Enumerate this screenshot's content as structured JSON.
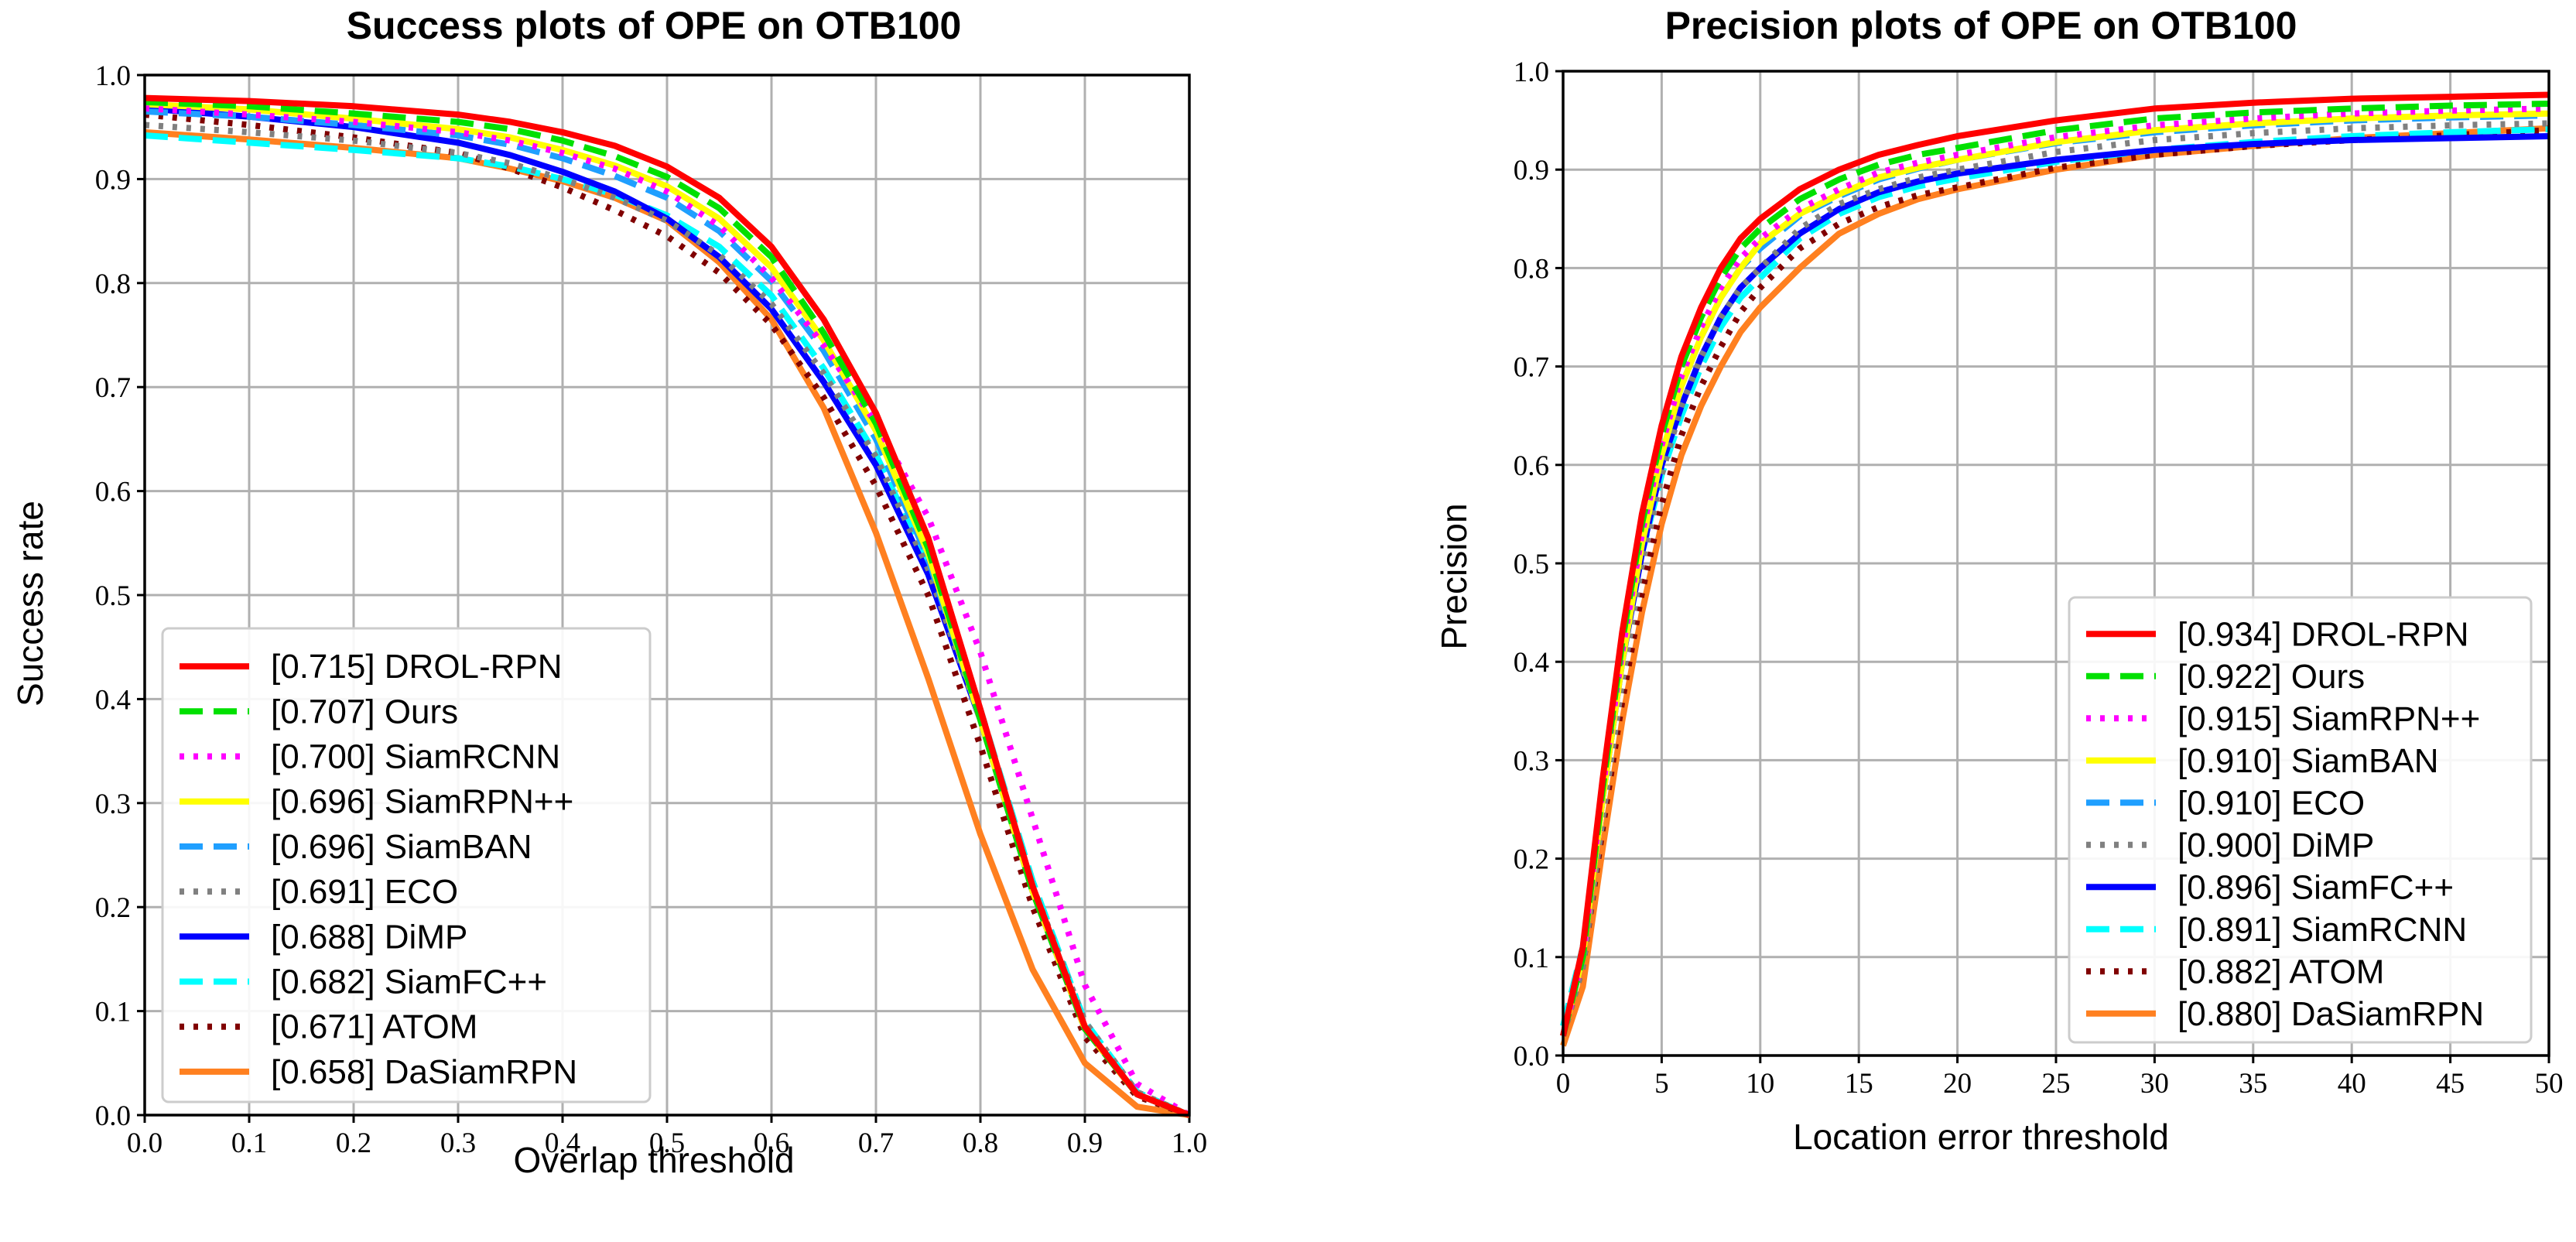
{
  "chart_data": [
    {
      "type": "line",
      "title": "Success plots of OPE on OTB100",
      "xlabel": "Overlap threshold",
      "ylabel": "Success rate",
      "xlim": [
        0.0,
        1.0
      ],
      "ylim": [
        0.0,
        1.0
      ],
      "x_ticks": [
        "0.0",
        "0.1",
        "0.2",
        "0.3",
        "0.4",
        "0.5",
        "0.6",
        "0.7",
        "0.8",
        "0.9",
        "1.0"
      ],
      "y_ticks": [
        "0.0",
        "0.1",
        "0.2",
        "0.3",
        "0.4",
        "0.5",
        "0.6",
        "0.7",
        "0.8",
        "0.9",
        "1.0"
      ],
      "grid": true,
      "legend_position": "lower-left",
      "x": [
        0,
        0.1,
        0.2,
        0.3,
        0.35,
        0.4,
        0.45,
        0.5,
        0.55,
        0.6,
        0.65,
        0.7,
        0.75,
        0.8,
        0.85,
        0.9,
        0.95,
        1.0
      ],
      "series": [
        {
          "name": "[0.715] DROL-RPN",
          "color": "#ff0000",
          "dash": "solid",
          "values": [
            0.978,
            0.975,
            0.97,
            0.962,
            0.955,
            0.945,
            0.932,
            0.912,
            0.882,
            0.835,
            0.765,
            0.675,
            0.555,
            0.39,
            0.22,
            0.085,
            0.02,
            0.0
          ]
        },
        {
          "name": "[0.707] Ours",
          "color": "#00e000",
          "dash": "dashed",
          "values": [
            0.974,
            0.97,
            0.963,
            0.955,
            0.948,
            0.937,
            0.922,
            0.902,
            0.872,
            0.825,
            0.752,
            0.665,
            0.545,
            0.38,
            0.215,
            0.083,
            0.02,
            0.0
          ]
        },
        {
          "name": "[0.700] SiamRCNN",
          "color": "#ff00ff",
          "dash": "dotted",
          "values": [
            0.968,
            0.962,
            0.955,
            0.945,
            0.937,
            0.925,
            0.91,
            0.888,
            0.855,
            0.805,
            0.74,
            0.665,
            0.575,
            0.445,
            0.285,
            0.125,
            0.03,
            0.0
          ]
        },
        {
          "name": "[0.696] SiamRPN++",
          "color": "#ffff00",
          "dash": "solid",
          "values": [
            0.972,
            0.967,
            0.958,
            0.948,
            0.94,
            0.928,
            0.913,
            0.893,
            0.862,
            0.815,
            0.745,
            0.658,
            0.54,
            0.38,
            0.215,
            0.083,
            0.02,
            0.0
          ]
        },
        {
          "name": "[0.696] SiamBAN",
          "color": "#1f9fff",
          "dash": "dashed",
          "values": [
            0.965,
            0.96,
            0.952,
            0.942,
            0.933,
            0.92,
            0.903,
            0.882,
            0.85,
            0.802,
            0.735,
            0.65,
            0.535,
            0.38,
            0.215,
            0.083,
            0.02,
            0.0
          ]
        },
        {
          "name": "[0.691] ECO",
          "color": "#808080",
          "dash": "dotted",
          "values": [
            0.952,
            0.945,
            0.937,
            0.925,
            0.915,
            0.9,
            0.882,
            0.86,
            0.827,
            0.78,
            0.713,
            0.633,
            0.525,
            0.38,
            0.22,
            0.09,
            0.022,
            0.0
          ]
        },
        {
          "name": "[0.688] DiMP",
          "color": "#0000ff",
          "dash": "solid",
          "values": [
            0.968,
            0.96,
            0.95,
            0.935,
            0.923,
            0.907,
            0.888,
            0.862,
            0.825,
            0.775,
            0.705,
            0.625,
            0.52,
            0.38,
            0.215,
            0.083,
            0.02,
            0.0
          ]
        },
        {
          "name": "[0.682] SiamFC++",
          "color": "#00ffff",
          "dash": "dashed",
          "values": [
            0.942,
            0.935,
            0.928,
            0.92,
            0.912,
            0.9,
            0.885,
            0.865,
            0.835,
            0.788,
            0.718,
            0.635,
            0.53,
            0.39,
            0.225,
            0.09,
            0.022,
            0.0
          ]
        },
        {
          "name": "[0.671] ATOM",
          "color": "#800000",
          "dash": "dotted",
          "values": [
            0.962,
            0.952,
            0.94,
            0.925,
            0.91,
            0.892,
            0.87,
            0.845,
            0.81,
            0.76,
            0.69,
            0.605,
            0.5,
            0.355,
            0.2,
            0.075,
            0.018,
            0.0
          ]
        },
        {
          "name": "[0.658] DaSiamRPN",
          "color": "#ff8020",
          "dash": "solid",
          "values": [
            0.945,
            0.938,
            0.93,
            0.92,
            0.91,
            0.898,
            0.882,
            0.86,
            0.82,
            0.765,
            0.68,
            0.56,
            0.42,
            0.27,
            0.14,
            0.05,
            0.008,
            0.0
          ]
        }
      ]
    },
    {
      "type": "line",
      "title": "Precision plots of OPE on OTB100",
      "xlabel": "Location error threshold",
      "ylabel": "Precision",
      "xlim": [
        0,
        50
      ],
      "ylim": [
        0.0,
        1.0
      ],
      "x_ticks": [
        "0",
        "5",
        "10",
        "15",
        "20",
        "25",
        "30",
        "35",
        "40",
        "45",
        "50"
      ],
      "y_ticks": [
        "0.0",
        "0.1",
        "0.2",
        "0.3",
        "0.4",
        "0.5",
        "0.6",
        "0.7",
        "0.8",
        "0.9",
        "1.0"
      ],
      "grid": true,
      "legend_position": "lower-right",
      "x": [
        0,
        1,
        2,
        3,
        4,
        5,
        6,
        7,
        8,
        9,
        10,
        12,
        14,
        16,
        18,
        20,
        25,
        30,
        35,
        40,
        45,
        50
      ],
      "series": [
        {
          "name": "[0.934] DROL-RPN",
          "color": "#ff0000",
          "dash": "solid",
          "values": [
            0.02,
            0.11,
            0.28,
            0.43,
            0.55,
            0.64,
            0.71,
            0.76,
            0.8,
            0.83,
            0.85,
            0.88,
            0.9,
            0.915,
            0.925,
            0.934,
            0.95,
            0.962,
            0.968,
            0.972,
            0.974,
            0.976
          ]
        },
        {
          "name": "[0.922] Ours",
          "color": "#00e000",
          "dash": "dashed",
          "values": [
            0.02,
            0.1,
            0.27,
            0.42,
            0.54,
            0.63,
            0.7,
            0.75,
            0.79,
            0.82,
            0.84,
            0.87,
            0.89,
            0.905,
            0.915,
            0.922,
            0.94,
            0.952,
            0.958,
            0.962,
            0.965,
            0.967
          ]
        },
        {
          "name": "[0.915] SiamRPN++",
          "color": "#ff00ff",
          "dash": "dotted",
          "values": [
            0.02,
            0.1,
            0.27,
            0.41,
            0.53,
            0.62,
            0.69,
            0.74,
            0.78,
            0.81,
            0.83,
            0.86,
            0.88,
            0.897,
            0.907,
            0.915,
            0.933,
            0.945,
            0.952,
            0.957,
            0.96,
            0.962
          ]
        },
        {
          "name": "[0.910] SiamBAN",
          "color": "#ffff00",
          "dash": "solid",
          "values": [
            0.02,
            0.1,
            0.26,
            0.4,
            0.52,
            0.61,
            0.68,
            0.73,
            0.77,
            0.8,
            0.825,
            0.855,
            0.875,
            0.892,
            0.902,
            0.91,
            0.928,
            0.94,
            0.947,
            0.952,
            0.955,
            0.957
          ]
        },
        {
          "name": "[0.910] ECO",
          "color": "#1f9fff",
          "dash": "dashed",
          "values": [
            0.02,
            0.1,
            0.27,
            0.41,
            0.52,
            0.61,
            0.68,
            0.73,
            0.77,
            0.8,
            0.82,
            0.853,
            0.873,
            0.89,
            0.901,
            0.91,
            0.927,
            0.938,
            0.945,
            0.95,
            0.953,
            0.955
          ]
        },
        {
          "name": "[0.900] DiMP",
          "color": "#808080",
          "dash": "dotted",
          "values": [
            0.02,
            0.09,
            0.24,
            0.38,
            0.5,
            0.59,
            0.66,
            0.71,
            0.75,
            0.78,
            0.8,
            0.84,
            0.865,
            0.88,
            0.892,
            0.9,
            0.918,
            0.93,
            0.937,
            0.942,
            0.945,
            0.947
          ]
        },
        {
          "name": "[0.896] SiamFC++",
          "color": "#0000ff",
          "dash": "solid",
          "values": [
            0.02,
            0.1,
            0.26,
            0.4,
            0.51,
            0.6,
            0.66,
            0.71,
            0.75,
            0.78,
            0.8,
            0.835,
            0.86,
            0.877,
            0.888,
            0.896,
            0.91,
            0.92,
            0.926,
            0.93,
            0.932,
            0.934
          ]
        },
        {
          "name": "[0.891] SiamRCNN",
          "color": "#00ffff",
          "dash": "dashed",
          "values": [
            0.03,
            0.11,
            0.27,
            0.41,
            0.51,
            0.59,
            0.65,
            0.7,
            0.74,
            0.77,
            0.79,
            0.83,
            0.855,
            0.872,
            0.883,
            0.891,
            0.908,
            0.92,
            0.928,
            0.934,
            0.938,
            0.941
          ]
        },
        {
          "name": "[0.882] ATOM",
          "color": "#800000",
          "dash": "dotted",
          "values": [
            0.02,
            0.09,
            0.23,
            0.36,
            0.47,
            0.56,
            0.63,
            0.68,
            0.72,
            0.755,
            0.78,
            0.82,
            0.845,
            0.862,
            0.874,
            0.882,
            0.902,
            0.915,
            0.924,
            0.93,
            0.935,
            0.94
          ]
        },
        {
          "name": "[0.880] DaSiamRPN",
          "color": "#ff8020",
          "dash": "solid",
          "values": [
            0.01,
            0.07,
            0.21,
            0.34,
            0.45,
            0.54,
            0.61,
            0.66,
            0.7,
            0.735,
            0.76,
            0.8,
            0.835,
            0.855,
            0.87,
            0.88,
            0.9,
            0.915,
            0.924,
            0.932,
            0.937,
            0.942
          ]
        }
      ]
    }
  ]
}
